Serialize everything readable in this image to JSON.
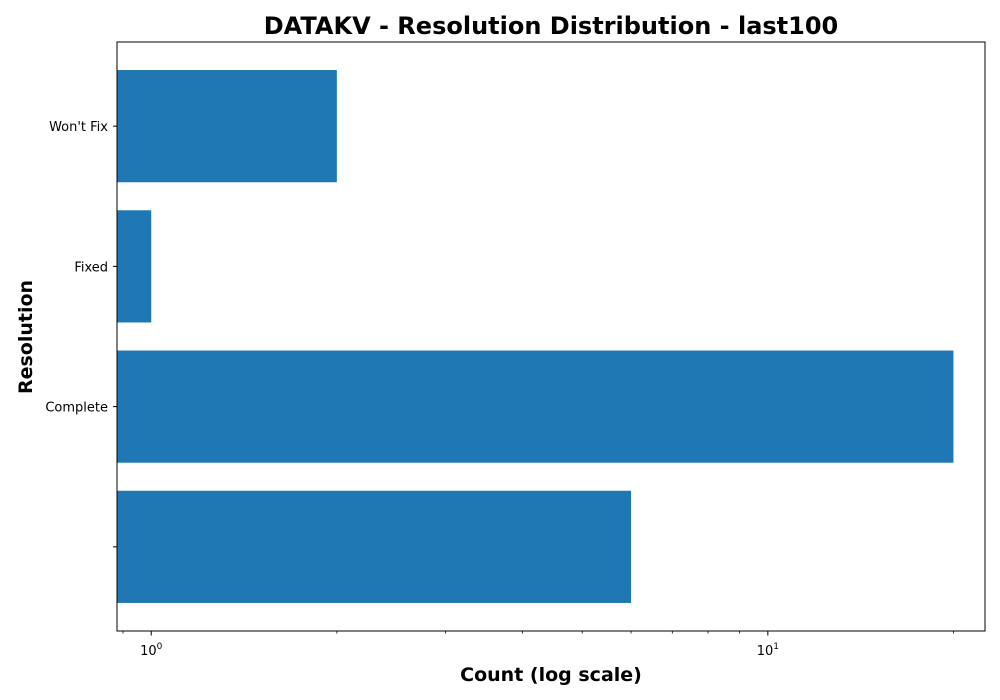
{
  "chart_data": {
    "type": "bar",
    "orientation": "horizontal",
    "title": "DATAKV - Resolution Distribution - last100",
    "xlabel": "Count (log scale)",
    "ylabel": "Resolution",
    "x_scale": "log",
    "xlim": [
      0.88,
      22.5
    ],
    "categories": [
      "",
      "Complete",
      "Fixed",
      "Won't Fix"
    ],
    "values": [
      6,
      20,
      1,
      2
    ],
    "x_ticks": [
      {
        "value": 1,
        "base": "10",
        "exp": "0"
      },
      {
        "value": 10,
        "base": "10",
        "exp": "1"
      }
    ],
    "bar_color": "#1f77b4",
    "grid": false,
    "legend": "none"
  }
}
